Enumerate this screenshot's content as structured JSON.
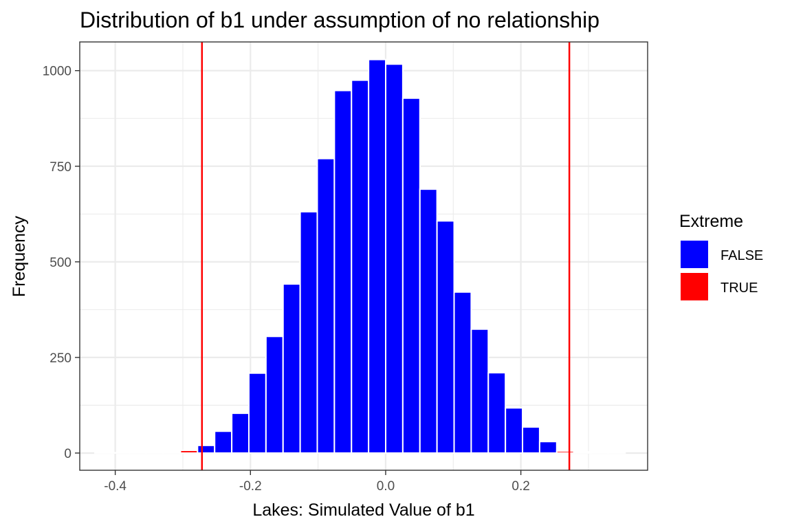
{
  "chart_data": {
    "type": "bar",
    "title": "Distribution of b1 under assumption of no relationship",
    "xlabel": "Lakes: Simulated Value of b1",
    "ylabel": "Frequency",
    "xlim": [
      -0.4525,
      0.3875
    ],
    "ylim": [
      -45,
      1075
    ],
    "x_ticks": [
      -0.4,
      -0.2,
      0.0,
      0.2
    ],
    "x_tick_labels": [
      "-0.4",
      "-0.2",
      "0.0",
      "0.2"
    ],
    "y_ticks": [
      0,
      250,
      500,
      750,
      1000
    ],
    "y_tick_labels": [
      "0",
      "250",
      "500",
      "750",
      "1000"
    ],
    "bin_width": 0.0253,
    "grid": true,
    "legend": {
      "title": "Extreme",
      "position": "right",
      "entries": [
        {
          "label": "FALSE",
          "color": "#0000FF"
        },
        {
          "label": "TRUE",
          "color": "#FF0000"
        }
      ]
    },
    "bins": [
      {
        "x": -0.4174,
        "count": 1,
        "extreme": true
      },
      {
        "x": -0.3921,
        "count": 1,
        "extreme": true
      },
      {
        "x": -0.3668,
        "count": 1,
        "extreme": true
      },
      {
        "x": -0.3415,
        "count": 1,
        "extreme": true
      },
      {
        "x": -0.3162,
        "count": 1,
        "extreme": true
      },
      {
        "x": -0.2909,
        "count": 7,
        "extreme": true
      },
      {
        "x": -0.2656,
        "count": 20,
        "extreme": false
      },
      {
        "x": -0.2403,
        "count": 57,
        "extreme": false
      },
      {
        "x": -0.215,
        "count": 104,
        "extreme": false
      },
      {
        "x": -0.1897,
        "count": 209,
        "extreme": false
      },
      {
        "x": -0.1644,
        "count": 305,
        "extreme": false
      },
      {
        "x": -0.1391,
        "count": 442,
        "extreme": false
      },
      {
        "x": -0.1138,
        "count": 631,
        "extreme": false
      },
      {
        "x": -0.0885,
        "count": 770,
        "extreme": false
      },
      {
        "x": -0.0632,
        "count": 948,
        "extreme": false
      },
      {
        "x": -0.0379,
        "count": 975,
        "extreme": false
      },
      {
        "x": -0.0126,
        "count": 1029,
        "extreme": false
      },
      {
        "x": 0.0127,
        "count": 1017,
        "extreme": false
      },
      {
        "x": 0.038,
        "count": 928,
        "extreme": false
      },
      {
        "x": 0.0633,
        "count": 690,
        "extreme": false
      },
      {
        "x": 0.0886,
        "count": 607,
        "extreme": false
      },
      {
        "x": 0.1139,
        "count": 421,
        "extreme": false
      },
      {
        "x": 0.1392,
        "count": 324,
        "extreme": false
      },
      {
        "x": 0.1645,
        "count": 210,
        "extreme": false
      },
      {
        "x": 0.1898,
        "count": 118,
        "extreme": false
      },
      {
        "x": 0.2151,
        "count": 68,
        "extreme": false
      },
      {
        "x": 0.2404,
        "count": 30,
        "extreme": false
      },
      {
        "x": 0.2657,
        "count": 5,
        "extreme": true
      },
      {
        "x": 0.291,
        "count": 3,
        "extreme": true
      },
      {
        "x": 0.3163,
        "count": 1,
        "extreme": true
      },
      {
        "x": 0.3416,
        "count": 1,
        "extreme": true
      }
    ],
    "reference_lines": [
      {
        "x": -0.2717,
        "color": "#FF0000"
      },
      {
        "x": 0.2717,
        "color": "#FF0000"
      }
    ]
  }
}
